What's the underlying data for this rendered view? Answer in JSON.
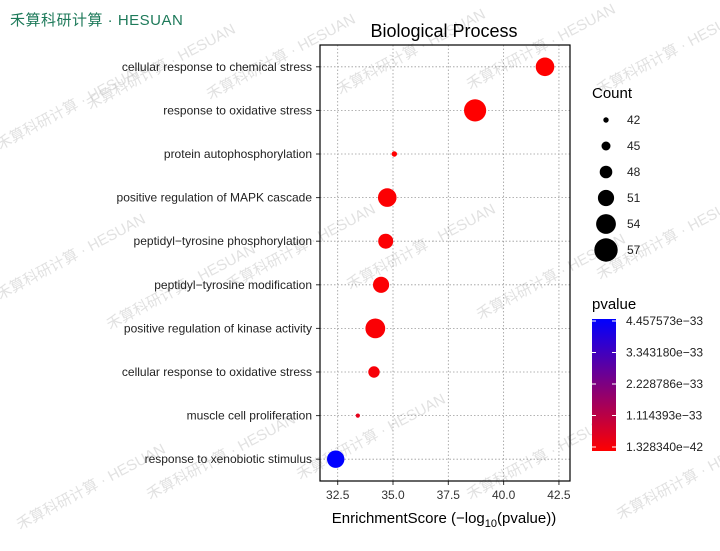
{
  "brand": {
    "name": "禾算科研计算 · HESUAN",
    "watermark": "禾算科研计算 · HESUAN"
  },
  "chart_data": {
    "type": "scatter",
    "title": "Biological Process",
    "xlabel_main": "EnrichmentScore (−log",
    "xlabel_sub": "10",
    "xlabel_tail": "(pvalue))",
    "xlim": [
      31.7,
      43.0
    ],
    "xticks": [
      32.5,
      35.0,
      37.5,
      40.0,
      42.5
    ],
    "xtick_labels": [
      "32.5",
      "35.0",
      "37.5",
      "40.0",
      "42.5"
    ],
    "grid": true,
    "categories": [
      "cellular response to chemical stress",
      "response to oxidative stress",
      "protein autophosphorylation",
      "positive regulation of MAPK cascade",
      "peptidyl−tyrosine phosphorylation",
      "peptidyl−tyrosine modification",
      "positive regulation of kinase activity",
      "cellular response to oxidative stress",
      "muscle cell proliferation",
      "response to xenobiotic stimulus"
    ],
    "points": [
      {
        "x": 41.87,
        "count": 53,
        "p_frac": 0.0
      },
      {
        "x": 38.71,
        "count": 56,
        "p_frac": 0.0
      },
      {
        "x": 35.06,
        "count": 42,
        "p_frac": 0.0
      },
      {
        "x": 34.74,
        "count": 53,
        "p_frac": 0.01
      },
      {
        "x": 34.67,
        "count": 50,
        "p_frac": 0.01
      },
      {
        "x": 34.46,
        "count": 51,
        "p_frac": 0.01
      },
      {
        "x": 34.2,
        "count": 54,
        "p_frac": 0.02
      },
      {
        "x": 34.14,
        "count": 47,
        "p_frac": 0.03
      },
      {
        "x": 33.41,
        "count": 41,
        "p_frac": 0.1
      },
      {
        "x": 32.41,
        "count": 52,
        "p_frac": 1.0
      }
    ],
    "size_legend": {
      "title": "Count",
      "values": [
        42,
        45,
        48,
        51,
        54,
        57
      ],
      "labels": [
        "42",
        "45",
        "48",
        "51",
        "54",
        "57"
      ]
    },
    "color_legend": {
      "title": "pvalue",
      "labels": [
        "4.457573e−33",
        "3.343180e−33",
        "2.228786e−33",
        "1.114393e−33",
        "1.328340e−42"
      ],
      "high_color": "#0000FF",
      "low_color": "#FF0000"
    },
    "legend_position": "right"
  }
}
